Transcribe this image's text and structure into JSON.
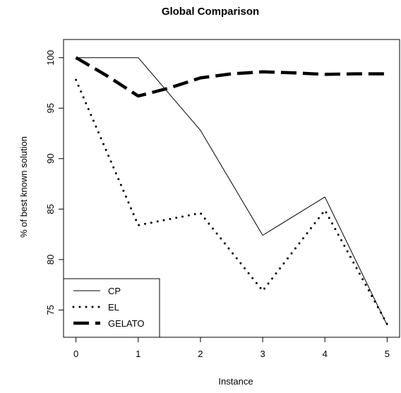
{
  "chart_data": {
    "type": "line",
    "title": "Global Comparison",
    "xlabel": "Instance",
    "ylabel": "% of best known solution",
    "x": [
      0,
      1,
      2,
      3,
      4,
      5
    ],
    "xlim": [
      -0.2,
      5.2
    ],
    "ylim": [
      72.3,
      101.8
    ],
    "xticks": [
      0,
      1,
      2,
      3,
      4,
      5
    ],
    "yticks": [
      75,
      80,
      85,
      90,
      95,
      100
    ],
    "grid": false,
    "legend_position": "bottom-left",
    "series": [
      {
        "name": "CP",
        "style": "solid",
        "color": "#000000",
        "values": [
          100.0,
          100.0,
          92.8,
          82.4,
          86.2,
          73.5
        ]
      },
      {
        "name": "EL",
        "style": "dotted",
        "color": "#000000",
        "values": [
          97.8,
          83.4,
          84.6,
          76.9,
          84.9,
          73.6
        ]
      },
      {
        "name": "GELATO",
        "style": "dashed",
        "color": "#000000",
        "x": [
          0,
          0.5,
          1,
          1.5,
          2,
          2.5,
          3,
          3.5,
          4,
          4.5,
          5
        ],
        "values": [
          100.0,
          98.2,
          96.2,
          97.0,
          98.0,
          98.4,
          98.6,
          98.5,
          98.35,
          98.4,
          98.4
        ]
      }
    ]
  }
}
